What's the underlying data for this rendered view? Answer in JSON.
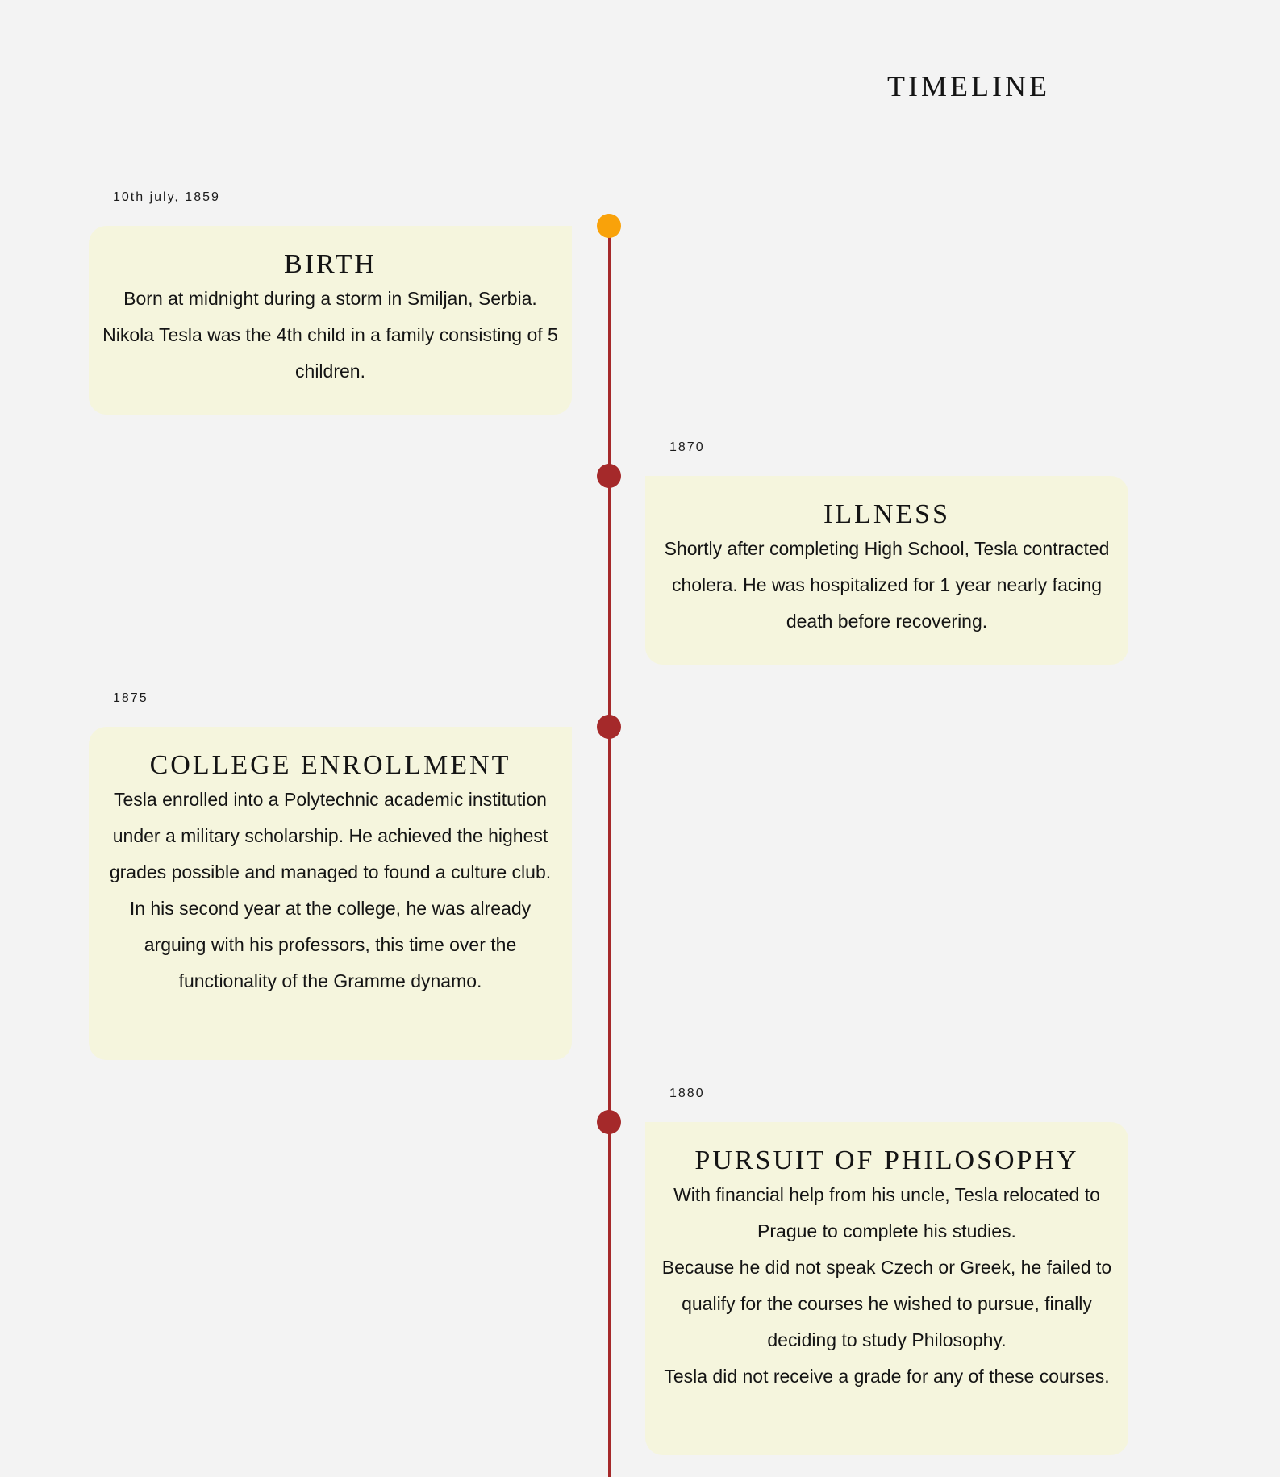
{
  "page": {
    "title": "TIMELINE"
  },
  "colors": {
    "background": "#f3f3f3",
    "card": "#f5f5dd",
    "line": "#a5292a",
    "active_marker": "#f9a20a",
    "marker": "#a5292a"
  },
  "events": [
    {
      "date": "10th july, 1859",
      "title": "BIRTH",
      "paragraphs": [
        "Born at midnight during a storm in Smiljan, Serbia. Nikola Tesla was the 4th child in a family consisting of 5 children."
      ]
    },
    {
      "date": "1870",
      "title": "ILLNESS",
      "paragraphs": [
        "Shortly after completing High School, Tesla contracted cholera. He was hospitalized for 1 year nearly facing death before recovering."
      ]
    },
    {
      "date": "1875",
      "title": "COLLEGE ENROLLMENT",
      "paragraphs": [
        "Tesla enrolled into a Polytechnic academic institution under a military scholarship. He achieved the highest grades possible and managed to found a culture club.",
        "In his second year at the college, he was already arguing with his professors, this time over the functionality of the Gramme dynamo."
      ]
    },
    {
      "date": "1880",
      "title": "PURSUIT OF PHILOSOPHY",
      "paragraphs": [
        "With financial help from his uncle, Tesla relocated to Prague to complete his studies.",
        "Because he did not speak Czech or Greek, he failed to qualify for the courses he wished to pursue, finally deciding to study Philosophy.",
        "Tesla did not receive a grade for any of these courses."
      ]
    }
  ]
}
